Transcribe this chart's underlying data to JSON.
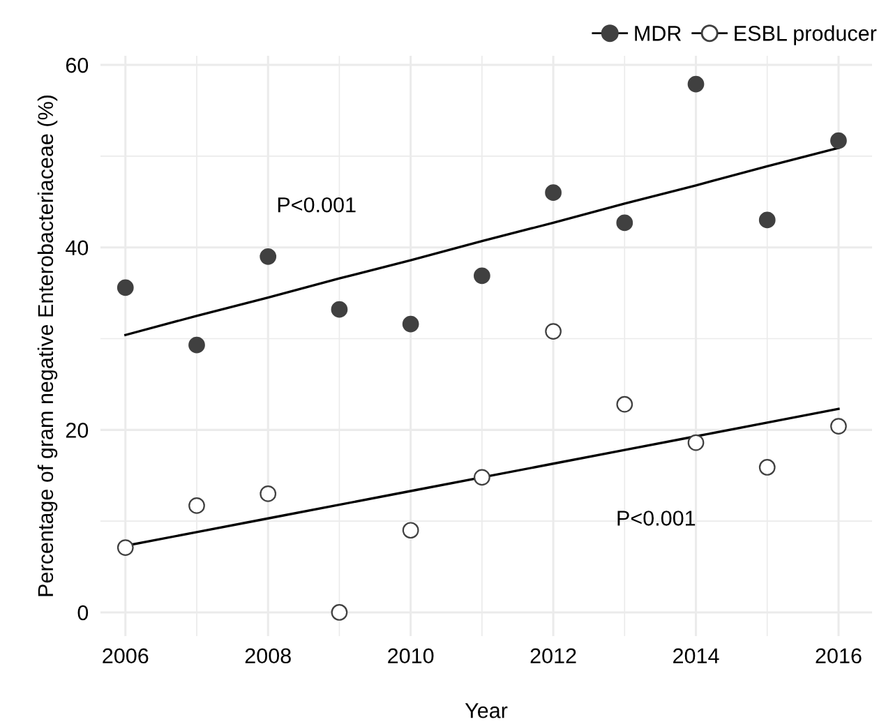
{
  "chart_data": {
    "type": "scatter",
    "xlabel": "Year",
    "ylabel": "Percentage of gram negative Enterobacteriaceae (%)",
    "x": [
      2006,
      2007,
      2008,
      2009,
      2010,
      2011,
      2012,
      2013,
      2014,
      2015,
      2016
    ],
    "series": [
      {
        "name": "MDR",
        "color": "#404040",
        "marker": "circle",
        "values": [
          35.6,
          29.3,
          39.0,
          33.2,
          31.6,
          36.9,
          46.0,
          42.7,
          57.9,
          43.0,
          51.7
        ]
      },
      {
        "name": "ESBL producer",
        "color": "#ffffff",
        "marker": "circle",
        "values": [
          7.1,
          11.7,
          13.0,
          0.0,
          9.0,
          14.8,
          30.8,
          22.8,
          18.6,
          15.9,
          20.4
        ]
      },
      {
        "type": "line",
        "color": "#000000",
        "values": [
          30.4,
          32.5,
          34.5,
          36.6,
          38.6,
          40.7,
          42.7,
          44.8,
          46.8,
          48.9,
          50.9
        ]
      },
      {
        "type": "line",
        "color": "#000000",
        "values": [
          7.3,
          8.8,
          10.3,
          11.8,
          13.3,
          14.8,
          16.3,
          17.8,
          19.3,
          20.8,
          22.3
        ]
      }
    ],
    "annotations": [
      "P<0.001",
      "P<0.001"
    ],
    "xlim": [
      2005.65,
      2016.47
    ],
    "ylim": [
      -2.6,
      61
    ],
    "xticks": [
      2006,
      2008,
      2010,
      2012,
      2014,
      2016
    ],
    "yticks": [
      0,
      20,
      40,
      60
    ],
    "grid": true,
    "legend": "top right"
  }
}
